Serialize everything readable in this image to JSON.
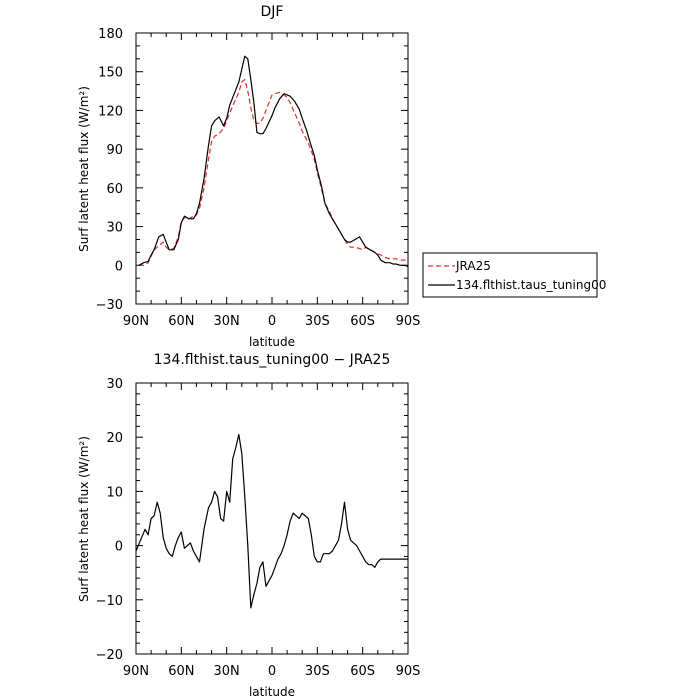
{
  "chart_data": [
    {
      "type": "line",
      "title": "DJF",
      "xlabel": "latitude",
      "ylabel": "Surf latent heat flux (W/m²)",
      "xlim": [
        90,
        -90
      ],
      "ylim": [
        -30,
        180
      ],
      "xticks": [
        90,
        60,
        30,
        0,
        -30,
        -60,
        -90
      ],
      "xtick_labels": [
        "90N",
        "60N",
        "30N",
        "0",
        "30S",
        "60S",
        "90S"
      ],
      "yticks": [
        -30,
        0,
        30,
        60,
        90,
        120,
        150,
        180
      ],
      "ytick_labels": [
        "−30",
        "0",
        "30",
        "60",
        "90",
        "120",
        "150",
        "180"
      ],
      "legend": {
        "position": "right",
        "entries": [
          "JRA25",
          "134.flthist.taus_tuning00"
        ]
      },
      "series": [
        {
          "name": "JRA25",
          "color": "#e0302a",
          "dash": "dashed",
          "x": [
            88,
            85,
            82,
            80,
            78,
            75,
            72,
            70,
            68,
            65,
            62,
            60,
            58,
            55,
            52,
            50,
            48,
            45,
            42,
            40,
            38,
            35,
            32,
            30,
            28,
            25,
            22,
            20,
            18,
            16,
            14,
            12,
            10,
            8,
            6,
            4,
            2,
            0,
            -2,
            -5,
            -8,
            -10,
            -12,
            -15,
            -18,
            -20,
            -23,
            -25,
            -28,
            -30,
            -33,
            -35,
            -38,
            -40,
            -43,
            -45,
            -48,
            -50,
            -52,
            -55,
            -58,
            -60,
            -62,
            -65,
            -68,
            -70,
            -72,
            -75,
            -78,
            -80,
            -82,
            -85,
            -88,
            -90
          ],
          "y": [
            0,
            0,
            2,
            7,
            12,
            15,
            18,
            14,
            12,
            13,
            22,
            34,
            37,
            36,
            38,
            39,
            44,
            60,
            82,
            96,
            100,
            102,
            106,
            112,
            118,
            126,
            134,
            142,
            144,
            135,
            122,
            112,
            110,
            110,
            114,
            120,
            126,
            132,
            133,
            134,
            132,
            130,
            126,
            118,
            110,
            104,
            97,
            92,
            82,
            72,
            58,
            48,
            42,
            36,
            30,
            26,
            20,
            16,
            14,
            14,
            13,
            12,
            14,
            12,
            10,
            9,
            8,
            6,
            5,
            5,
            5,
            4,
            4,
            3
          ]
        },
        {
          "name": "134.flthist.taus_tuning00",
          "color": "#000000",
          "dash": "solid",
          "x": [
            88,
            85,
            82,
            80,
            78,
            75,
            72,
            70,
            68,
            65,
            62,
            60,
            58,
            55,
            52,
            50,
            48,
            45,
            42,
            40,
            38,
            35,
            32,
            30,
            28,
            25,
            22,
            20,
            18,
            16,
            14,
            12,
            10,
            8,
            6,
            4,
            2,
            0,
            -2,
            -5,
            -8,
            -10,
            -12,
            -15,
            -18,
            -20,
            -23,
            -25,
            -28,
            -30,
            -33,
            -35,
            -38,
            -40,
            -43,
            -45,
            -48,
            -50,
            -52,
            -55,
            -58,
            -60,
            -62,
            -65,
            -68,
            -70,
            -72,
            -75,
            -78,
            -80,
            -82,
            -85,
            -88,
            -90
          ],
          "y": [
            0,
            2,
            3,
            8,
            12,
            22,
            24,
            18,
            12,
            12,
            20,
            33,
            38,
            36,
            36,
            40,
            48,
            67,
            93,
            108,
            112,
            115,
            108,
            114,
            124,
            133,
            142,
            152,
            162,
            160,
            144,
            126,
            103,
            102,
            102,
            106,
            111,
            116,
            122,
            129,
            133,
            132,
            131,
            127,
            121,
            114,
            104,
            96,
            85,
            74,
            60,
            48,
            40,
            36,
            30,
            26,
            20,
            18,
            18,
            20,
            22,
            18,
            14,
            12,
            10,
            8,
            4,
            2,
            2,
            1,
            1,
            0,
            0,
            -1
          ]
        }
      ]
    },
    {
      "type": "line",
      "title": "134.flthist.taus_tuning00 − JRA25",
      "xlabel": "latitude",
      "ylabel": "Surf latent heat flux (W/m²)",
      "xlim": [
        90,
        -90
      ],
      "ylim": [
        -20,
        30
      ],
      "xticks": [
        90,
        60,
        30,
        0,
        -30,
        -60,
        -90
      ],
      "xtick_labels": [
        "90N",
        "60N",
        "30N",
        "0",
        "30S",
        "60S",
        "90S"
      ],
      "yticks": [
        -20,
        -10,
        0,
        10,
        20,
        30
      ],
      "ytick_labels": [
        "−20",
        "−10",
        "0",
        "10",
        "20",
        "30"
      ],
      "series": [
        {
          "color": "#000000",
          "dash": "solid",
          "x": [
            90,
            87,
            84,
            82,
            80,
            78,
            76,
            74,
            72,
            70,
            68,
            66,
            64,
            62,
            60,
            58,
            56,
            54,
            52,
            50,
            48,
            45,
            42,
            40,
            38,
            36,
            34,
            32,
            30,
            28,
            26,
            24,
            22,
            20,
            18,
            16,
            14,
            12,
            10,
            8,
            6,
            4,
            2,
            0,
            -2,
            -4,
            -6,
            -8,
            -10,
            -12,
            -14,
            -16,
            -18,
            -20,
            -22,
            -24,
            -26,
            -28,
            -30,
            -32,
            -34,
            -36,
            -38,
            -40,
            -42,
            -44,
            -46,
            -48,
            -50,
            -52,
            -54,
            -56,
            -58,
            -60,
            -62,
            -64,
            -66,
            -68,
            -70,
            -72,
            -74,
            -76,
            -78,
            -80,
            -82,
            -84,
            -86,
            -88,
            -90
          ],
          "y": [
            -1,
            1,
            3,
            2,
            5,
            5.5,
            8,
            6,
            1.5,
            -0.5,
            -1.5,
            -2,
            0,
            1.5,
            2.5,
            -0.5,
            0,
            0.5,
            -1,
            -2,
            -3,
            3,
            7,
            8,
            10,
            9,
            5,
            4.5,
            10,
            8,
            16,
            18,
            20.5,
            17,
            9,
            0,
            -11.5,
            -9,
            -7,
            -4,
            -3,
            -7.5,
            -6.5,
            -5.5,
            -4,
            -2.5,
            -1.5,
            0,
            2,
            4.5,
            6,
            5.5,
            5,
            6,
            5.5,
            5,
            2,
            -2,
            -3,
            -3,
            -1.5,
            -1.5,
            -1.5,
            -1,
            0,
            1,
            4,
            8,
            3,
            1,
            0.5,
            0,
            -1,
            -2,
            -3,
            -3.5,
            -3.5,
            -4,
            -3,
            -2.5,
            -2.5,
            -2.5,
            -2.5,
            -2.5,
            -2.5,
            -2.5,
            -2.5,
            -2.5,
            -2.5
          ]
        }
      ]
    }
  ]
}
